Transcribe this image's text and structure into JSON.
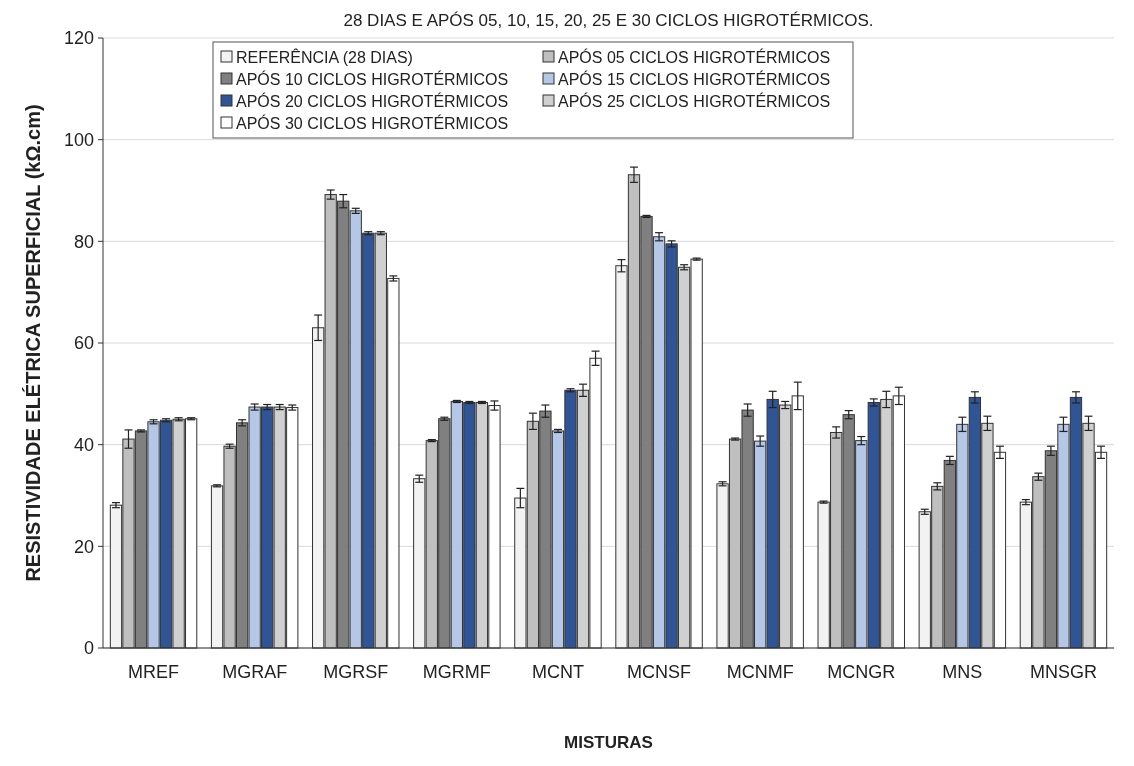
{
  "chart_data": {
    "type": "bar",
    "title": "28 DIAS E APÓS 05, 10, 15, 20, 25 E 30 CICLOS HIGROTÉRMICOS.",
    "xlabel": "MISTURAS",
    "ylabel": "RESISTIVIDADE ELÉTRICA SUPERFICIAL (kΩ.cm)",
    "categories": [
      "MREF",
      "MGRAF",
      "MGRSF",
      "MGRMF",
      "MCNT",
      "MCNSF",
      "MCNMF",
      "MCNGR",
      "MNS",
      "MNSGR"
    ],
    "series": [
      {
        "name": "REFERÊNCIA (28 DIAS)",
        "color": "#f2f2f2",
        "values": [
          28.1,
          31.9,
          63,
          33.3,
          29.5,
          75.2,
          32.3,
          28.7,
          26.8,
          28.7
        ],
        "errors": [
          0.5,
          0.2,
          2.5,
          0.7,
          1.9,
          1.2,
          0.4,
          0.2,
          0.5,
          0.5
        ]
      },
      {
        "name": "APÓS 05 CICLOS HIGROTÉRMICOS",
        "color": "#bfbfbf",
        "values": [
          41.1,
          39.7,
          89.2,
          40.8,
          44.6,
          93.1,
          41.1,
          42.4,
          31.8,
          33.7
        ],
        "errors": [
          1.8,
          0.4,
          0.9,
          0.2,
          1.6,
          1.5,
          0.2,
          1.1,
          0.7,
          0.7
        ]
      },
      {
        "name": "APÓS 10 CICLOS HIGROTÉRMICOS",
        "color": "#808080",
        "values": [
          42.7,
          44.3,
          87.9,
          45.1,
          46.6,
          84.9,
          46.8,
          45.9,
          36.9,
          38.8
        ],
        "errors": [
          0.2,
          0.6,
          1.3,
          0.3,
          1.2,
          0.2,
          1.2,
          0.8,
          0.8,
          0.9
        ]
      },
      {
        "name": "APÓS 15 CICLOS HIGROTÉRMICOS",
        "color": "#b4c7e7",
        "values": [
          44.5,
          47.4,
          86,
          48.5,
          42.7,
          80.9,
          40.7,
          40.8,
          44,
          44
        ],
        "errors": [
          0.4,
          0.6,
          0.5,
          0.2,
          0.3,
          0.8,
          1,
          0.8,
          1.4,
          1.4
        ]
      },
      {
        "name": "APÓS 20 CICLOS HIGROTÉRMICOS",
        "color": "#2f5597",
        "values": [
          44.8,
          47.4,
          81.6,
          48.3,
          50.7,
          79.5,
          48.9,
          48.3,
          49.3,
          49.3
        ],
        "errors": [
          0.3,
          0.5,
          0.3,
          0.2,
          0.3,
          0.6,
          1.6,
          0.7,
          1.1,
          1.1
        ]
      },
      {
        "name": "APÓS 25 CICLOS HIGROTÉRMICOS",
        "color": "#d0d0d0",
        "values": [
          45,
          47.4,
          81.6,
          48.3,
          50.7,
          74.9,
          47.8,
          48.9,
          44.2,
          44.2
        ],
        "errors": [
          0.3,
          0.5,
          0.3,
          0.2,
          1.2,
          0.5,
          0.7,
          1.6,
          1.4,
          1.4
        ]
      },
      {
        "name": "APÓS 30 CICLOS HIGROTÉRMICOS",
        "color": "#ffffff",
        "values": [
          45.1,
          47.3,
          72.7,
          47.7,
          57,
          76.5,
          49.6,
          49.6,
          38.5,
          38.5
        ],
        "errors": [
          0.2,
          0.5,
          0.5,
          0.9,
          1.4,
          0.2,
          2.7,
          1.7,
          1.2,
          1.2
        ]
      }
    ],
    "ylim": [
      0,
      120
    ],
    "yticks": [
      0,
      20,
      40,
      60,
      80,
      100,
      120
    ],
    "grid": "y",
    "legend": "top"
  }
}
